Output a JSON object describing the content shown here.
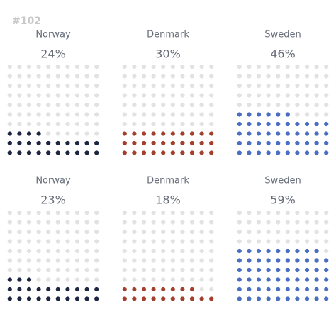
{
  "page_label": "#102",
  "chart_data": [
    {
      "type": "waffle",
      "title": "Norway",
      "values": [
        24
      ],
      "value_labels": [
        "24%"
      ],
      "color": "#1c2541",
      "empty_color": "#e2e2e2",
      "rows": 10,
      "cols": 10
    },
    {
      "type": "waffle",
      "title": "Denmark",
      "values": [
        30
      ],
      "value_labels": [
        "30%"
      ],
      "color": "#a3402d",
      "empty_color": "#e2e2e2",
      "rows": 10,
      "cols": 10
    },
    {
      "type": "waffle",
      "title": "Sweden",
      "values": [
        46
      ],
      "value_labels": [
        "46%"
      ],
      "color": "#4a6fc2",
      "empty_color": "#e2e2e2",
      "rows": 10,
      "cols": 10
    },
    {
      "type": "waffle",
      "title": "Norway",
      "values": [
        23
      ],
      "value_labels": [
        "23%"
      ],
      "color": "#1c2541",
      "empty_color": "#e2e2e2",
      "rows": 10,
      "cols": 10
    },
    {
      "type": "waffle",
      "title": "Denmark",
      "values": [
        18
      ],
      "value_labels": [
        "18%"
      ],
      "color": "#a3402d",
      "empty_color": "#e2e2e2",
      "rows": 10,
      "cols": 10
    },
    {
      "type": "waffle",
      "title": "Sweden",
      "values": [
        59
      ],
      "value_labels": [
        "59%"
      ],
      "color": "#4a6fc2",
      "empty_color": "#e2e2e2",
      "rows": 10,
      "cols": 10
    }
  ]
}
